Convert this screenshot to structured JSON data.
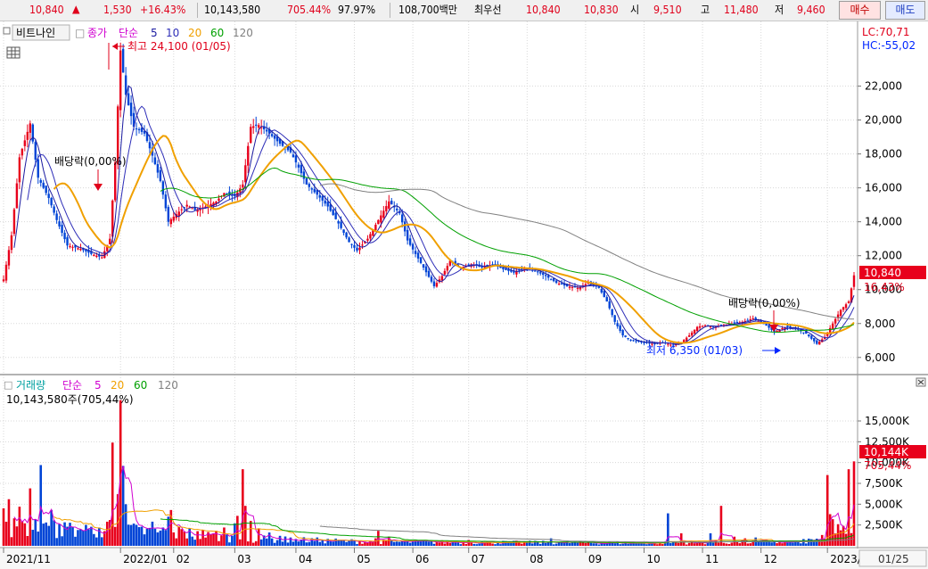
{
  "quote": {
    "price": "10,840",
    "arrow": "▲",
    "change": "1,530",
    "change_pct": "+16.43%",
    "volume": "10,143,580",
    "volume_ratio": "705.44%",
    "strength": "97.97%",
    "amount": "108,700백만",
    "best_label": "최우선",
    "ask": "10,840",
    "bid": "10,830",
    "open_label": "시",
    "open": "9,510",
    "high_label": "고",
    "high": "11,480",
    "low_label": "저",
    "low": "9,460"
  },
  "buttons": {
    "buy": "매수",
    "sell": "매도"
  },
  "price_panel": {
    "menu_icon": "square-menu-icon",
    "mode_label": "비트나인",
    "title": "종가",
    "ma_type": "단순",
    "ma_periods": [
      "5",
      "10",
      "20",
      "60",
      "120"
    ],
    "lc": "LC:70,71",
    "hc": "HC:-55,02",
    "high_note": "최고 24,100 (01/05)",
    "low_note": "최저 6,350 (01/03)",
    "dividend_notes": [
      "배당락(0,00%)",
      "배당락(0,00%)"
    ],
    "current_price_tag": "10,840",
    "current_pct_tag": "16,43%"
  },
  "volume_panel": {
    "title": "거래량",
    "ma_type": "단순",
    "ma_periods": [
      "5",
      "20",
      "60",
      "120"
    ],
    "summary": "10,143,580주(705,44%)",
    "current_tag": "10,144K",
    "current_pct": "705,44%"
  },
  "x_axis": {
    "labels": [
      "2021/11",
      "2022/01",
      "02",
      "03",
      "04",
      "05",
      "06",
      "07",
      "08",
      "09",
      "10",
      "11",
      "12",
      "2023/01"
    ],
    "date_box": "01/25"
  },
  "colors": {
    "up": "#e8001c",
    "down": "#0044d6",
    "ma5": "#1a1aa0",
    "ma10": "#2e2eb8",
    "ma20": "#f0a000",
    "ma60": "#00a000",
    "ma120": "#808080",
    "vol_ma5": "#d000d0"
  },
  "chart_data": {
    "type": "candlestick",
    "price_axis": {
      "ticks": [
        6000,
        8000,
        10000,
        12000,
        14000,
        16000,
        18000,
        20000,
        22000
      ],
      "labels": [
        "6,000",
        "8,000",
        "10,000",
        "12,000",
        "14,000",
        "16,000",
        "18,000",
        "20,000",
        "22,000"
      ],
      "range": [
        5200,
        25500
      ]
    },
    "volume_axis": {
      "ticks": [
        2500,
        5000,
        7500,
        10000,
        12500,
        15000
      ],
      "labels": [
        "2,500K",
        "5,000K",
        "7,500K",
        "10,000K",
        "12,500K",
        "15,000K"
      ],
      "range": [
        0,
        18000
      ],
      "unit": "K"
    },
    "x_range": [
      0,
      320
    ],
    "month_positions": [
      0,
      44,
      64,
      87,
      110,
      132,
      154,
      175,
      197,
      219,
      241,
      263,
      285,
      310
    ],
    "price_anchors": [
      [
        0,
        10600
      ],
      [
        3,
        13200
      ],
      [
        6,
        17800
      ],
      [
        10,
        19800
      ],
      [
        13,
        16600
      ],
      [
        17,
        15400
      ],
      [
        20,
        14100
      ],
      [
        24,
        12600
      ],
      [
        29,
        12400
      ],
      [
        33,
        12100
      ],
      [
        37,
        11900
      ],
      [
        40,
        13000
      ],
      [
        42,
        17500
      ],
      [
        44,
        24100
      ],
      [
        46,
        21500
      ],
      [
        49,
        19600
      ],
      [
        53,
        19200
      ],
      [
        56,
        17900
      ],
      [
        59,
        16400
      ],
      [
        62,
        14000
      ],
      [
        66,
        14600
      ],
      [
        69,
        15000
      ],
      [
        72,
        14700
      ],
      [
        76,
        14900
      ],
      [
        80,
        15200
      ],
      [
        83,
        15700
      ],
      [
        87,
        15500
      ],
      [
        90,
        16200
      ],
      [
        93,
        19600
      ],
      [
        96,
        19700
      ],
      [
        100,
        19200
      ],
      [
        104,
        18600
      ],
      [
        108,
        18100
      ],
      [
        111,
        17200
      ],
      [
        114,
        16200
      ],
      [
        118,
        15600
      ],
      [
        122,
        14900
      ],
      [
        126,
        13900
      ],
      [
        130,
        12800
      ],
      [
        133,
        12300
      ],
      [
        137,
        13000
      ],
      [
        141,
        14100
      ],
      [
        145,
        15200
      ],
      [
        149,
        14500
      ],
      [
        152,
        12900
      ],
      [
        155,
        12100
      ],
      [
        158,
        11300
      ],
      [
        162,
        10200
      ],
      [
        165,
        10800
      ],
      [
        168,
        11700
      ],
      [
        172,
        11300
      ],
      [
        176,
        11500
      ],
      [
        180,
        11300
      ],
      [
        184,
        11500
      ],
      [
        188,
        11200
      ],
      [
        192,
        11000
      ],
      [
        196,
        11300
      ],
      [
        200,
        11100
      ],
      [
        204,
        10800
      ],
      [
        208,
        10400
      ],
      [
        212,
        10200
      ],
      [
        216,
        10100
      ],
      [
        220,
        10400
      ],
      [
        224,
        10100
      ],
      [
        227,
        9300
      ],
      [
        230,
        8100
      ],
      [
        233,
        7300
      ],
      [
        236,
        7000
      ],
      [
        240,
        6900
      ],
      [
        244,
        6800
      ],
      [
        248,
        6900
      ],
      [
        252,
        6700
      ],
      [
        255,
        6900
      ],
      [
        258,
        7300
      ],
      [
        261,
        7800
      ],
      [
        264,
        7900
      ],
      [
        267,
        7800
      ],
      [
        270,
        7900
      ],
      [
        274,
        8000
      ],
      [
        278,
        8100
      ],
      [
        282,
        8300
      ],
      [
        286,
        8000
      ],
      [
        290,
        7500
      ],
      [
        294,
        7800
      ],
      [
        298,
        7700
      ],
      [
        302,
        7400
      ],
      [
        306,
        6800
      ],
      [
        309,
        7200
      ],
      [
        312,
        8000
      ],
      [
        315,
        8800
      ],
      [
        318,
        9300
      ],
      [
        320,
        10840
      ]
    ],
    "volume_spikes": [
      [
        0,
        4500
      ],
      [
        2,
        5600
      ],
      [
        4,
        3300
      ],
      [
        6,
        4700
      ],
      [
        8,
        2700
      ],
      [
        10,
        6900
      ],
      [
        12,
        3200
      ],
      [
        14,
        9700
      ],
      [
        16,
        2800
      ],
      [
        18,
        4300
      ],
      [
        21,
        2600
      ],
      [
        24,
        2300
      ],
      [
        28,
        1900
      ],
      [
        32,
        2000
      ],
      [
        36,
        2200
      ],
      [
        40,
        3100
      ],
      [
        41,
        12400
      ],
      [
        43,
        6200
      ],
      [
        44,
        17500
      ],
      [
        45,
        9600
      ],
      [
        46,
        5000
      ],
      [
        48,
        2500
      ],
      [
        52,
        2300
      ],
      [
        56,
        2900
      ],
      [
        60,
        2200
      ],
      [
        62,
        3500
      ],
      [
        63,
        4300
      ],
      [
        66,
        2300
      ],
      [
        70,
        2100
      ],
      [
        75,
        1900
      ],
      [
        80,
        1800
      ],
      [
        83,
        2200
      ],
      [
        87,
        2700
      ],
      [
        88,
        3600
      ],
      [
        90,
        9200
      ],
      [
        91,
        4800
      ],
      [
        93,
        3000
      ],
      [
        96,
        2100
      ],
      [
        100,
        1600
      ],
      [
        104,
        1200
      ],
      [
        108,
        1000
      ],
      [
        112,
        700
      ],
      [
        120,
        700
      ],
      [
        130,
        600
      ],
      [
        140,
        900
      ],
      [
        141,
        1800
      ],
      [
        145,
        1100
      ],
      [
        150,
        600
      ],
      [
        160,
        500
      ],
      [
        170,
        500
      ],
      [
        175,
        700
      ],
      [
        180,
        500
      ],
      [
        190,
        400
      ],
      [
        200,
        600
      ],
      [
        206,
        900
      ],
      [
        210,
        400
      ],
      [
        220,
        500
      ],
      [
        230,
        300
      ],
      [
        240,
        300
      ],
      [
        250,
        3900
      ],
      [
        255,
        1500
      ],
      [
        260,
        300
      ],
      [
        266,
        1500
      ],
      [
        270,
        4800
      ],
      [
        275,
        1100
      ],
      [
        279,
        900
      ],
      [
        283,
        1000
      ],
      [
        286,
        500
      ],
      [
        290,
        500
      ],
      [
        295,
        400
      ],
      [
        300,
        300
      ],
      [
        305,
        600
      ],
      [
        308,
        1300
      ],
      [
        310,
        8500
      ],
      [
        311,
        3800
      ],
      [
        312,
        3200
      ],
      [
        314,
        2600
      ],
      [
        316,
        2400
      ],
      [
        318,
        9200
      ],
      [
        320,
        10144
      ]
    ]
  }
}
